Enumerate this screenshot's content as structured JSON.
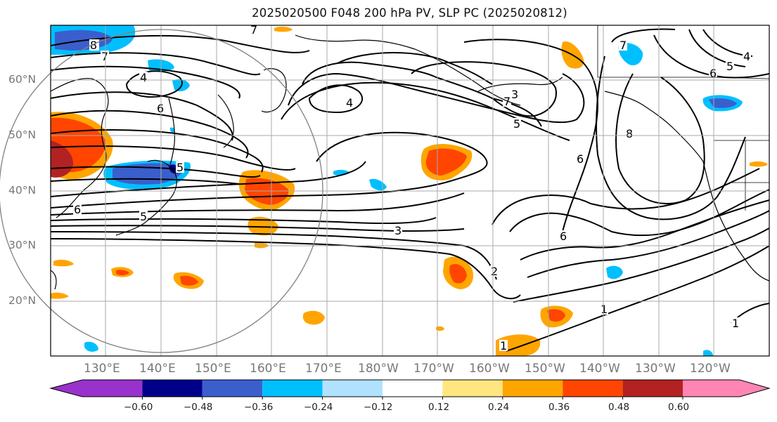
{
  "title": "2025020500 F048 200 hPa PV, SLP PC (2025020812)",
  "lat_labels": [
    "60°N",
    "50°N",
    "40°N",
    "30°N",
    "20°N"
  ],
  "lon_labels": [
    "130°E",
    "140°E",
    "150°E",
    "160°E",
    "170°E",
    "180°W",
    "170°W",
    "160°W",
    "150°W",
    "140°W",
    "130°W",
    "120°W"
  ],
  "colorbar": {
    "ticks": [
      "−0.60",
      "−0.48",
      "−0.36",
      "−0.24",
      "−0.12",
      "0.12",
      "0.24",
      "0.36",
      "0.48",
      "0.60"
    ],
    "colors": [
      "#9932cc",
      "#00008b",
      "#3a5fcd",
      "#00bfff",
      "#b0e2ff",
      "#ffffff",
      "#ffe680",
      "#ffa500",
      "#ff4500",
      "#b22222",
      "#ff85b4"
    ]
  },
  "contour_labels": [
    "8",
    "7",
    "4",
    "6",
    "5",
    "4",
    "3",
    "7",
    "5",
    "6",
    "8",
    "7",
    "4",
    "5",
    "6",
    "6",
    "5",
    "3",
    "6",
    "2",
    "1",
    "1",
    "1",
    "7"
  ],
  "colors": {
    "land_outline": "#000000",
    "grid": "#aaaaaa",
    "range_ring": "#808080"
  }
}
